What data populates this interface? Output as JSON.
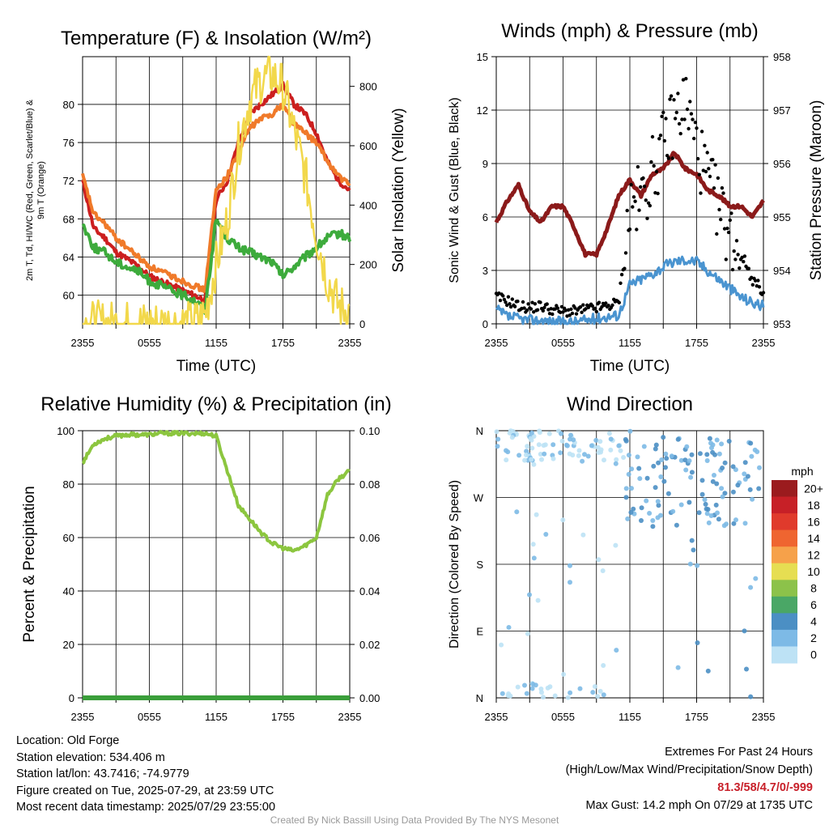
{
  "chart_data": [
    {
      "type": "line",
      "title": "Temperature (F) & Insolation (W/m²)",
      "xlabel": "Time (UTC)",
      "ylabel_left": "2m T, Td, HI/WC (Red, Green, Scarlet/Blue) & 9m T (Orange)",
      "ylabel_right": "Solar Insolation (Yellow)",
      "x_ticks": [
        "2355",
        "0555",
        "1155",
        "1755",
        "2355"
      ],
      "ylim_left": [
        57,
        85
      ],
      "yticks_left": [
        "60",
        "64",
        "68",
        "72",
        "76",
        "80"
      ],
      "ylim_right": [
        0,
        900
      ],
      "yticks_right": [
        "0",
        "200",
        "400",
        "600",
        "800"
      ],
      "grid": true,
      "series": [
        {
          "color": "#cc1f1f",
          "hour": [
            0,
            1,
            2,
            3,
            4,
            5,
            6,
            7,
            8,
            9,
            10,
            11,
            12,
            13,
            14,
            15,
            16,
            17,
            18,
            19,
            20,
            21,
            22,
            23,
            24
          ],
          "values": [
            72,
            67,
            66,
            64.5,
            63.8,
            63,
            62,
            61.5,
            61,
            60.5,
            60,
            59.5,
            70,
            72,
            76,
            79,
            80,
            81,
            82,
            80,
            79,
            77,
            74,
            72,
            71
          ]
        },
        {
          "color": "#f07a2a",
          "hour": [
            0,
            1,
            2,
            3,
            4,
            5,
            6,
            7,
            8,
            9,
            10,
            11,
            12,
            13,
            14,
            15,
            16,
            17,
            18,
            19,
            20,
            21,
            22,
            23,
            24
          ],
          "values": [
            72.5,
            68.5,
            67.5,
            66,
            65,
            64,
            63,
            62.5,
            62,
            61.5,
            61,
            60.5,
            71,
            72.5,
            75,
            77.5,
            78.5,
            79,
            80,
            78,
            77,
            76,
            74,
            72.5,
            71.5
          ]
        },
        {
          "color": "#3dab3c",
          "hour": [
            0,
            1,
            2,
            3,
            4,
            5,
            6,
            7,
            8,
            9,
            10,
            11,
            12,
            13,
            14,
            15,
            16,
            17,
            18,
            19,
            20,
            21,
            22,
            23,
            24
          ],
          "values": [
            67.5,
            65,
            64.5,
            63.5,
            63,
            62.5,
            61.5,
            61,
            60.5,
            60,
            59.5,
            58.5,
            68,
            66,
            65,
            64.5,
            64,
            63.5,
            62,
            63,
            64,
            65,
            66,
            66.5,
            66
          ]
        },
        {
          "color": "#f2d84b",
          "hour": [
            0,
            1,
            2,
            3,
            4,
            5,
            6,
            7,
            8,
            9,
            10,
            11,
            12,
            13,
            14,
            15,
            16,
            17,
            18,
            19,
            20,
            21,
            22,
            23,
            24
          ],
          "values": [
            0,
            0,
            0,
            0,
            0,
            0,
            0,
            0,
            0,
            0,
            0,
            30,
            200,
            350,
            600,
            750,
            820,
            840,
            800,
            650,
            500,
            300,
            150,
            60,
            40
          ]
        }
      ]
    },
    {
      "type": "line",
      "title": "Winds (mph) & Pressure (mb)",
      "xlabel": "Time (UTC)",
      "ylabel_left": "Sonic Wind & Gust (Blue, Black)",
      "ylabel_right": "Station Pressure (Maroon)",
      "x_ticks": [
        "2355",
        "0555",
        "1155",
        "1755",
        "2355"
      ],
      "ylim_left": [
        0,
        15
      ],
      "yticks_left": [
        "0",
        "3",
        "6",
        "9",
        "12",
        "15"
      ],
      "ylim_right": [
        953,
        958
      ],
      "yticks_right": [
        "953",
        "954",
        "955",
        "956",
        "957",
        "958"
      ],
      "grid": true,
      "series": [
        {
          "color": "#8b1a1a",
          "hour": [
            0,
            1,
            2,
            3,
            4,
            5,
            6,
            7,
            8,
            9,
            10,
            11,
            12,
            13,
            14,
            15,
            16,
            17,
            18,
            19,
            20,
            21,
            22,
            23,
            24
          ],
          "values": [
            954.9,
            955.3,
            955.6,
            955.1,
            954.9,
            955.2,
            955.2,
            954.8,
            954.3,
            954.3,
            954.8,
            955.4,
            955.7,
            955.4,
            955.8,
            955.9,
            956.2,
            955.9,
            955.8,
            955.5,
            955.4,
            955.2,
            955.2,
            955.0,
            955.3
          ]
        },
        {
          "color": "#4a94d0",
          "hour": [
            0,
            1,
            2,
            3,
            4,
            5,
            6,
            7,
            8,
            9,
            10,
            11,
            12,
            13,
            14,
            15,
            16,
            17,
            18,
            19,
            20,
            21,
            22,
            23,
            24
          ],
          "values": [
            0.8,
            0.4,
            0.3,
            0.2,
            0.2,
            0.1,
            0.1,
            0.1,
            0.2,
            0.3,
            0.4,
            0.5,
            2.2,
            2.5,
            2.8,
            3.2,
            3.5,
            3.6,
            3.5,
            3.0,
            2.5,
            2.0,
            1.5,
            1.2,
            1.0
          ]
        },
        {
          "color": "#000000",
          "marker": "dot",
          "hour": [
            0,
            1,
            2,
            3,
            4,
            5,
            6,
            7,
            8,
            9,
            10,
            11,
            12,
            13,
            14,
            15,
            16,
            17,
            18,
            19,
            20,
            21,
            22,
            23,
            24
          ],
          "values": [
            1.5,
            1.3,
            1.0,
            0.9,
            1.0,
            0.8,
            0.7,
            0.7,
            0.8,
            0.9,
            1.0,
            1.2,
            6.5,
            7.0,
            8.5,
            10.0,
            11.5,
            12.5,
            10.0,
            8.0,
            6.5,
            5.0,
            4.0,
            2.5,
            1.8
          ]
        }
      ]
    },
    {
      "type": "line",
      "title": "Relative Humidity (%) & Precipitation (in)",
      "xlabel": "",
      "ylabel_left": "Percent & Precipitation",
      "x_ticks": [
        "2355",
        "0555",
        "1155",
        "1755",
        "2355"
      ],
      "ylim_left": [
        0,
        100
      ],
      "yticks_left": [
        "0",
        "20",
        "40",
        "60",
        "80",
        "100"
      ],
      "ylim_right": [
        0,
        0.1
      ],
      "yticks_right": [
        "0.00",
        "0.02",
        "0.04",
        "0.06",
        "0.08",
        "0.10"
      ],
      "grid": true,
      "series": [
        {
          "color": "#8cc63f",
          "hour": [
            0,
            1,
            2,
            3,
            4,
            5,
            6,
            7,
            8,
            9,
            10,
            11,
            12,
            13,
            14,
            15,
            16,
            17,
            18,
            19,
            20,
            21,
            22,
            23,
            24
          ],
          "values": [
            88,
            95,
            97,
            98,
            98.5,
            98.5,
            98.5,
            99,
            99,
            99,
            99,
            99,
            98,
            85,
            72,
            67,
            62,
            58,
            56,
            55,
            57,
            60,
            76,
            82,
            85
          ]
        },
        {
          "color": "#3a9e3a",
          "hour": [
            0,
            24
          ],
          "values": [
            0,
            0
          ]
        }
      ]
    },
    {
      "type": "scatter",
      "title": "Wind Direction",
      "ylabel": "Direction (Colored By Speed)",
      "x_ticks": [
        "2355",
        "0555",
        "1155",
        "1755",
        "2355"
      ],
      "y_ticks": [
        "N",
        "E",
        "S",
        "W",
        "N"
      ],
      "ylim": [
        0,
        360
      ],
      "grid": true,
      "legend_title": "mph",
      "legend_labels": [
        "20+",
        "18",
        "16",
        "14",
        "12",
        "10",
        "8",
        "6",
        "4",
        "2",
        "0"
      ],
      "legend_colors": [
        "#9b1b1e",
        "#c72027",
        "#e03a2c",
        "#ef6530",
        "#f6a14a",
        "#e6de52",
        "#8cc24a",
        "#4aa766",
        "#4b8fc4",
        "#7dbae6",
        "#bde2f5"
      ]
    }
  ],
  "info": {
    "location": "Location: Old Forge",
    "elevation": "Station elevation: 534.406 m",
    "latlon": "Station lat/lon: 43.7416; -74.9779",
    "created": "Figure created on Tue, 2025-07-29, at 23:59 UTC",
    "recent": "Most recent data timestamp: 2025/07/29 23:55:00"
  },
  "extremes": {
    "heading": "Extremes For Past 24 Hours",
    "subheading": "(High/Low/Max Wind/Precipitation/Snow Depth)",
    "values": "81.3/58/4.7/0/-999",
    "max_gust": "Max Gust: 14.2 mph On 07/29 at 1735 UTC"
  },
  "credit": "Created By Nick Bassill Using Data Provided By The NYS Mesonet"
}
